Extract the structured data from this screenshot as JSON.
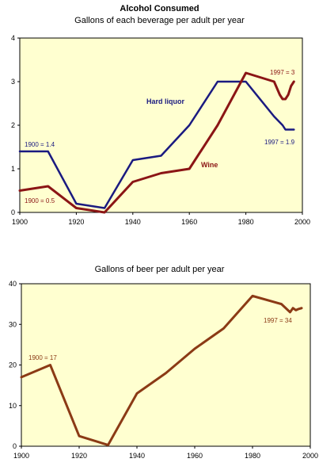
{
  "page": {
    "title": "Alcohol Consumed"
  },
  "chart_data": [
    {
      "type": "line",
      "title": "",
      "subtitle": "Gallons of each beverage per adult per year",
      "xlabel": "",
      "ylabel": "",
      "xlim": [
        1900,
        2000
      ],
      "ylim": [
        0,
        4
      ],
      "xticks": [
        "1900",
        "1920",
        "1940",
        "1960",
        "1980",
        "2000"
      ],
      "yticks": [
        "0",
        "1",
        "2",
        "3",
        "4"
      ],
      "grid": false,
      "series": [
        {
          "name": "Hard liquor",
          "color": "#1a1a80",
          "x": [
            1900,
            1910,
            1920,
            1930,
            1940,
            1950,
            1960,
            1970,
            1980,
            1990,
            1993,
            1994,
            1995,
            1996,
            1997
          ],
          "y": [
            1.4,
            1.4,
            0.2,
            0.1,
            1.2,
            1.3,
            2.0,
            3.0,
            3.0,
            2.2,
            2.0,
            1.9,
            1.9,
            1.9,
            1.9
          ]
        },
        {
          "name": "Wine",
          "color": "#8b1515",
          "x": [
            1900,
            1910,
            1920,
            1930,
            1940,
            1950,
            1960,
            1970,
            1980,
            1990,
            1992,
            1993,
            1994,
            1995,
            1996,
            1997
          ],
          "y": [
            0.5,
            0.6,
            0.1,
            0.0,
            0.7,
            0.9,
            1.0,
            2.0,
            3.2,
            3.0,
            2.7,
            2.6,
            2.6,
            2.7,
            2.9,
            3.0
          ]
        }
      ],
      "annotations": [
        {
          "text": "1900 = 1.4",
          "color": "#1a1a80"
        },
        {
          "text": "1900 = 0.5",
          "color": "#8b1515"
        },
        {
          "text": "1997 = 1.9",
          "color": "#1a1a80"
        },
        {
          "text": "1997 = 3",
          "color": "#8b1515"
        }
      ]
    },
    {
      "type": "line",
      "title": "Gallons of beer per adult per year",
      "xlabel": "",
      "ylabel": "",
      "xlim": [
        1900,
        2000
      ],
      "ylim": [
        0,
        40
      ],
      "xticks": [
        "1900",
        "1920",
        "1940",
        "1960",
        "1980",
        "2000"
      ],
      "yticks": [
        "0",
        "10",
        "20",
        "30",
        "40"
      ],
      "grid": false,
      "series": [
        {
          "name": "",
          "color": "#8b3a15",
          "x": [
            1900,
            1910,
            1920,
            1930,
            1940,
            1950,
            1960,
            1970,
            1980,
            1990,
            1993,
            1994,
            1995,
            1996,
            1997
          ],
          "y": [
            17,
            20,
            2.5,
            0.3,
            13,
            18,
            24,
            29,
            37,
            35,
            33,
            34,
            33.5,
            33.8,
            34
          ]
        }
      ],
      "annotations": [
        {
          "text": "1900 = 17",
          "color": "#8b3a15"
        },
        {
          "text": "1997 = 34",
          "color": "#8b3a15"
        }
      ]
    }
  ],
  "colors": {
    "plot_background": "#ffffd0",
    "axis": "#000000"
  }
}
